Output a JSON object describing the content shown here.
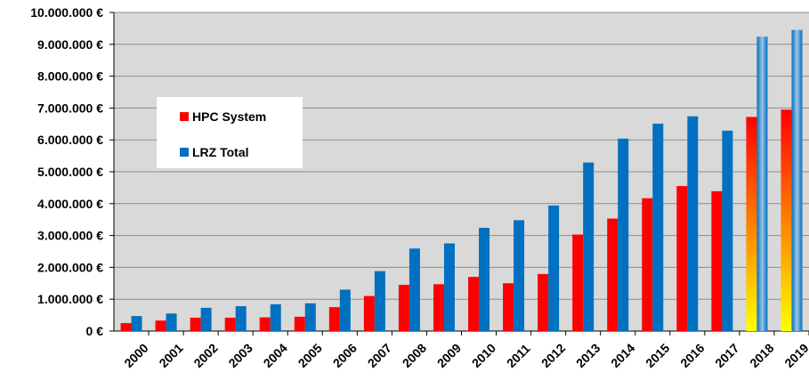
{
  "chart_data": {
    "type": "bar",
    "title": "",
    "xlabel": "",
    "ylabel": "",
    "ylim": [
      0,
      10000000
    ],
    "yticks": [
      0,
      1000000,
      2000000,
      3000000,
      4000000,
      5000000,
      6000000,
      7000000,
      8000000,
      9000000,
      10000000
    ],
    "ytick_labels": [
      "0 €",
      "1.000.000 €",
      "2.000.000 €",
      "3.000.000 €",
      "4.000.000 €",
      "5.000.000 €",
      "6.000.000 €",
      "7.000.000 €",
      "8.000.000 €",
      "9.000.000 €",
      "10.000.000 €"
    ],
    "categories": [
      "2000",
      "2001",
      "2002",
      "2003",
      "2004",
      "2005",
      "2006",
      "2007",
      "2008",
      "2009",
      "2010",
      "2011",
      "2012",
      "2013",
      "2014",
      "2015",
      "2016",
      "2017",
      "2018",
      "2019"
    ],
    "series": [
      {
        "name": "HPC System",
        "color": "#ff0000",
        "values": [
          250000,
          330000,
          420000,
          420000,
          430000,
          450000,
          750000,
          1100000,
          1450000,
          1470000,
          1700000,
          1500000,
          1790000,
          3030000,
          3530000,
          4170000,
          4550000,
          4390000,
          6720000,
          6950000
        ]
      },
      {
        "name": "LRZ Total",
        "color": "#0070c0",
        "values": [
          470000,
          550000,
          730000,
          780000,
          840000,
          870000,
          1300000,
          1880000,
          2590000,
          2750000,
          3240000,
          3480000,
          3940000,
          5290000,
          6040000,
          6510000,
          6740000,
          6290000,
          9240000,
          9450000
        ]
      }
    ],
    "projected_categories": [
      "2018",
      "2019"
    ],
    "grid": "horizontal",
    "legend_position": "left-inside"
  },
  "colors": {
    "plot_background": "#d9d9d9",
    "gridline": "#8c8c8c",
    "hpc": "#ff0000",
    "lrz": "#0070c0",
    "projected_hpc_top": "#ff0000",
    "projected_hpc_bottom": "#ffff00",
    "projected_lrz_top": "#0070c0",
    "projected_lrz_bottom": "#b4c7e7"
  }
}
